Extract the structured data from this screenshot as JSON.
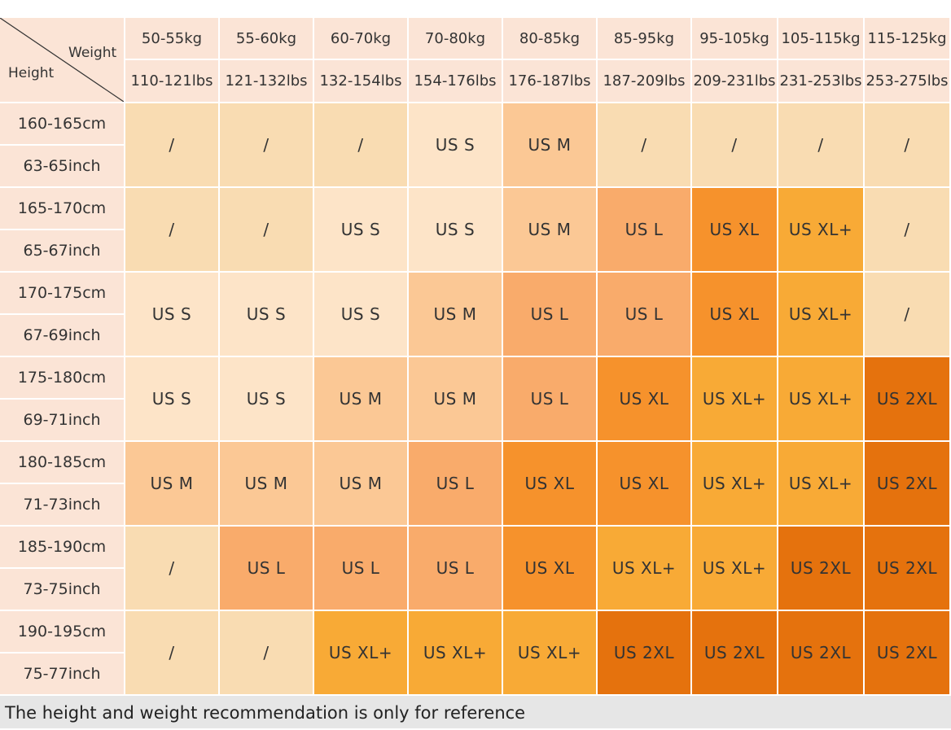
{
  "header": {
    "corner_weight": "Weight",
    "corner_height": "Height",
    "weight_kg": [
      "50-55kg",
      "55-60kg",
      "60-70kg",
      "70-80kg",
      "80-85kg",
      "85-95kg",
      "95-105kg",
      "105-115kg",
      "115-125kg"
    ],
    "weight_lbs": [
      "110-121lbs",
      "121-132lbs",
      "132-154lbs",
      "154-176lbs",
      "176-187lbs",
      "187-209lbs",
      "209-231lbs",
      "231-253lbs",
      "253-275lbs"
    ]
  },
  "rows": [
    {
      "cm": "160-165cm",
      "inch": "63-65inch",
      "sizes": [
        "/",
        "/",
        "/",
        "US S",
        "US M",
        "/",
        "/",
        "/",
        "/"
      ]
    },
    {
      "cm": "165-170cm",
      "inch": "65-67inch",
      "sizes": [
        "/",
        "/",
        "US S",
        "US S",
        "US M",
        "US L",
        "US XL",
        "US XL+",
        "/"
      ]
    },
    {
      "cm": "170-175cm",
      "inch": "67-69inch",
      "sizes": [
        "US S",
        "US S",
        "US S",
        "US M",
        "US L",
        "US L",
        "US XL",
        "US XL+",
        "/"
      ]
    },
    {
      "cm": "175-180cm",
      "inch": "69-71inch",
      "sizes": [
        "US S",
        "US S",
        "US M",
        "US M",
        "US L",
        "US XL",
        "US XL+",
        "US XL+",
        "US 2XL"
      ]
    },
    {
      "cm": "180-185cm",
      "inch": "71-73inch",
      "sizes": [
        "US M",
        "US M",
        "US M",
        "US L",
        "US XL",
        "US XL",
        "US XL+",
        "US XL+",
        "US 2XL"
      ]
    },
    {
      "cm": "185-190cm",
      "inch": "73-75inch",
      "sizes": [
        "/",
        "US L",
        "US L",
        "US L",
        "US XL",
        "US XL+",
        "US XL+",
        "US 2XL",
        "US 2XL"
      ]
    },
    {
      "cm": "190-195cm",
      "inch": "75-77inch",
      "sizes": [
        "/",
        "/",
        "US XL+",
        "US XL+",
        "US XL+",
        "US 2XL",
        "US 2XL",
        "US 2XL",
        "US 2XL"
      ]
    }
  ],
  "cell_colors": {
    "/": "#f9dcb2",
    "US S": "#fde4c8",
    "US M": "#fbc895",
    "US L": "#f9ab6b",
    "US XL": "#f6922c",
    "US XL+": "#f8aa36",
    "US 2XL": "#e5720d"
  },
  "footer": "The height and weight recommendation is only for reference"
}
